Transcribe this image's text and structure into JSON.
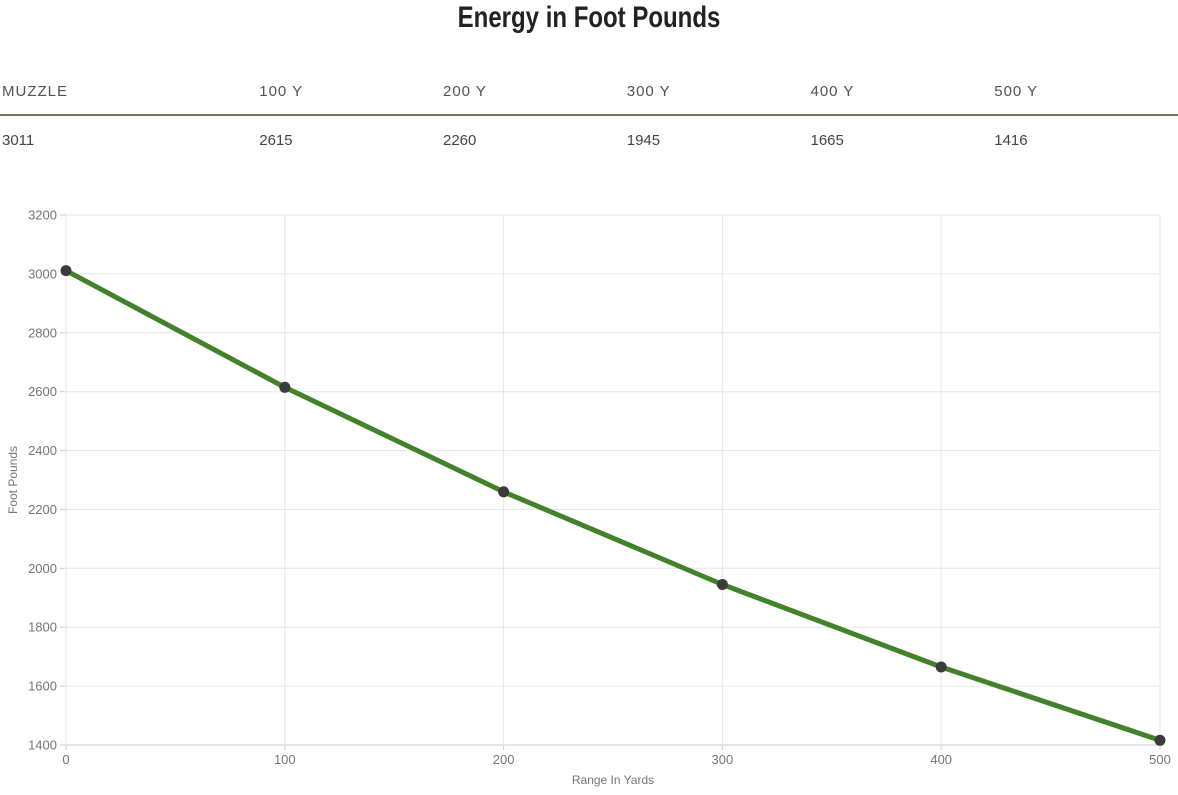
{
  "page": {
    "title": "Energy in Foot Pounds"
  },
  "table": {
    "headers": [
      "MUZZLE",
      "100 Y",
      "200 Y",
      "300 Y",
      "400 Y",
      "500 Y"
    ],
    "values": [
      "3011",
      "2615",
      "2260",
      "1945",
      "1665",
      "1416"
    ]
  },
  "chart_data": {
    "type": "line",
    "title": "Energy in Foot Pounds",
    "x": [
      0,
      100,
      200,
      300,
      400,
      500
    ],
    "values": [
      3011,
      2615,
      2260,
      1945,
      1665,
      1416
    ],
    "xlabel": "Range In Yards",
    "ylabel": "Foot Pounds",
    "xlim": [
      0,
      500
    ],
    "ylim": [
      1400,
      3200
    ],
    "x_ticks": [
      0,
      100,
      200,
      300,
      400,
      500
    ],
    "y_tick_step": 200,
    "grid": true,
    "legend": "none",
    "line_color": "#41822a",
    "marker_color": "#3b3b3b",
    "grid_color": "#e6e6e6",
    "axis_line_color": "#cccccc",
    "tick_label_color": "#757575"
  },
  "colors": {
    "title_text": "#222222",
    "table_header_text": "#55524d",
    "table_value_text": "#444444",
    "table_header_border": "#72725c"
  }
}
